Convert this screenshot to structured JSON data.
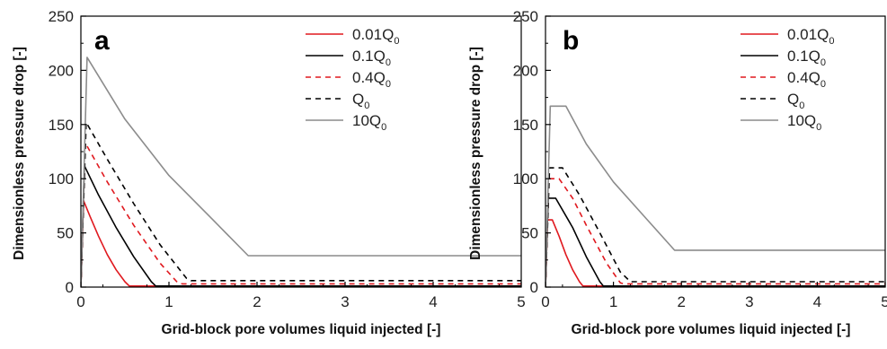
{
  "chart_data": [
    {
      "panel": "a",
      "type": "line",
      "xlabel": "Grid-block pore volumes liquid injected [-]",
      "ylabel": "Dimensionless pressure drop [-]",
      "xlim": [
        0,
        5
      ],
      "ylim": [
        0,
        250
      ],
      "xticks": [
        "0",
        "1",
        "2",
        "3",
        "4",
        "5"
      ],
      "yticks": [
        "0",
        "50",
        "100",
        "150",
        "200",
        "250"
      ],
      "grid": false,
      "legend_position": "top-right",
      "series": [
        {
          "name": "0.01Q",
          "subscript": "0",
          "color": "#e0191f",
          "dash": "solid",
          "points": [
            [
              0,
              0
            ],
            [
              0.03,
              80
            ],
            [
              0.1,
              66
            ],
            [
              0.2,
              47
            ],
            [
              0.3,
              30
            ],
            [
              0.4,
              16
            ],
            [
              0.5,
              5
            ],
            [
              0.55,
              1
            ],
            [
              5,
              1
            ]
          ]
        },
        {
          "name": "0.1Q",
          "subscript": "0",
          "color": "#000000",
          "dash": "solid",
          "points": [
            [
              0,
              0
            ],
            [
              0.04,
              112
            ],
            [
              0.2,
              85
            ],
            [
              0.4,
              55
            ],
            [
              0.6,
              28
            ],
            [
              0.8,
              5
            ],
            [
              0.85,
              1
            ],
            [
              5,
              1
            ]
          ]
        },
        {
          "name": "0.4Q",
          "subscript": "0",
          "color": "#e0191f",
          "dash": "dashed",
          "points": [
            [
              0,
              0
            ],
            [
              0.05,
              133
            ],
            [
              0.3,
              97
            ],
            [
              0.6,
              57
            ],
            [
              0.9,
              22
            ],
            [
              1.1,
              4
            ],
            [
              1.15,
              3
            ],
            [
              5,
              3
            ]
          ]
        },
        {
          "name": "Q",
          "subscript": "0",
          "color": "#000000",
          "dash": "dashed",
          "points": [
            [
              0,
              0
            ],
            [
              0.06,
              152
            ],
            [
              0.3,
              118
            ],
            [
              0.6,
              77
            ],
            [
              0.9,
              39
            ],
            [
              1.2,
              8
            ],
            [
              1.25,
              6
            ],
            [
              5,
              6
            ]
          ]
        },
        {
          "name": "10Q",
          "subscript": "0",
          "color": "#8c8c8c",
          "dash": "solid",
          "points": [
            [
              0,
              0
            ],
            [
              0.07,
              212
            ],
            [
              0.5,
              155
            ],
            [
              1.0,
              103
            ],
            [
              1.5,
              62
            ],
            [
              1.9,
              29
            ],
            [
              5,
              29
            ]
          ]
        }
      ]
    },
    {
      "panel": "b",
      "type": "line",
      "xlabel": "Grid-block pore volumes liquid injected [-]",
      "ylabel": "Dimensionless pressure drop [-]",
      "xlim": [
        0,
        5
      ],
      "ylim": [
        0,
        250
      ],
      "xticks": [
        "0",
        "1",
        "2",
        "3",
        "4",
        "5"
      ],
      "yticks": [
        "0",
        "50",
        "100",
        "150",
        "200",
        "250"
      ],
      "grid": false,
      "legend_position": "top-right",
      "series": [
        {
          "name": "0.01Q",
          "subscript": "0",
          "color": "#e0191f",
          "dash": "solid",
          "points": [
            [
              0,
              0
            ],
            [
              0.03,
              62
            ],
            [
              0.1,
              62
            ],
            [
              0.2,
              47
            ],
            [
              0.3,
              30
            ],
            [
              0.4,
              16
            ],
            [
              0.5,
              5
            ],
            [
              0.55,
              1
            ],
            [
              5,
              1
            ]
          ]
        },
        {
          "name": "0.1Q",
          "subscript": "0",
          "color": "#000000",
          "dash": "solid",
          "points": [
            [
              0,
              0
            ],
            [
              0.04,
              82
            ],
            [
              0.15,
              82
            ],
            [
              0.4,
              55
            ],
            [
              0.6,
              28
            ],
            [
              0.8,
              5
            ],
            [
              0.85,
              1
            ],
            [
              5,
              1
            ]
          ]
        },
        {
          "name": "0.4Q",
          "subscript": "0",
          "color": "#e0191f",
          "dash": "dashed",
          "points": [
            [
              0,
              0
            ],
            [
              0.05,
              100
            ],
            [
              0.2,
              100
            ],
            [
              0.4,
              82
            ],
            [
              0.6,
              57
            ],
            [
              0.9,
              22
            ],
            [
              1.1,
              4
            ],
            [
              1.15,
              3
            ],
            [
              5,
              3
            ]
          ]
        },
        {
          "name": "Q",
          "subscript": "0",
          "color": "#000000",
          "dash": "dashed",
          "points": [
            [
              0,
              0
            ],
            [
              0.06,
              110
            ],
            [
              0.25,
              110
            ],
            [
              0.5,
              85
            ],
            [
              0.8,
              50
            ],
            [
              1.1,
              14
            ],
            [
              1.25,
              5
            ],
            [
              5,
              5
            ]
          ]
        },
        {
          "name": "10Q",
          "subscript": "0",
          "color": "#8c8c8c",
          "dash": "solid",
          "points": [
            [
              0,
              0
            ],
            [
              0.07,
              167
            ],
            [
              0.3,
              167
            ],
            [
              0.6,
              132
            ],
            [
              1.0,
              97
            ],
            [
              1.5,
              62
            ],
            [
              1.9,
              34
            ],
            [
              5,
              34
            ]
          ]
        }
      ]
    }
  ]
}
